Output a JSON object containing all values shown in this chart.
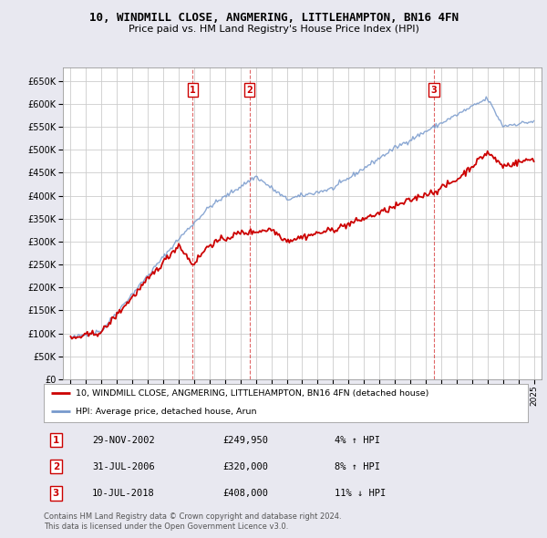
{
  "title": "10, WINDMILL CLOSE, ANGMERING, LITTLEHAMPTON, BN16 4FN",
  "subtitle": "Price paid vs. HM Land Registry's House Price Index (HPI)",
  "legend_property": "10, WINDMILL CLOSE, ANGMERING, LITTLEHAMPTON, BN16 4FN (detached house)",
  "legend_hpi": "HPI: Average price, detached house, Arun",
  "footer1": "Contains HM Land Registry data © Crown copyright and database right 2024.",
  "footer2": "This data is licensed under the Open Government Licence v3.0.",
  "yticks": [
    0,
    50000,
    100000,
    150000,
    200000,
    250000,
    300000,
    350000,
    400000,
    450000,
    500000,
    550000,
    600000,
    650000
  ],
  "ylim_max": 680000,
  "xlim_start": 1994.5,
  "xlim_end": 2025.5,
  "sales": [
    {
      "num": 1,
      "date": "29-NOV-2002",
      "price": 249950,
      "pct": "4%",
      "dir": "↑",
      "year": 2002.91
    },
    {
      "num": 2,
      "date": "31-JUL-2006",
      "price": 320000,
      "pct": "8%",
      "dir": "↑",
      "year": 2006.58
    },
    {
      "num": 3,
      "date": "10-JUL-2018",
      "price": 408000,
      "pct": "11%",
      "dir": "↓",
      "year": 2018.52
    }
  ],
  "background_color": "#e8e8f0",
  "plot_bg_color": "#ffffff",
  "grid_color": "#cccccc",
  "property_line_color": "#cc0000",
  "hpi_line_color": "#7799cc",
  "vline_color": "#cc0000",
  "title_fontsize": 9,
  "subtitle_fontsize": 8
}
